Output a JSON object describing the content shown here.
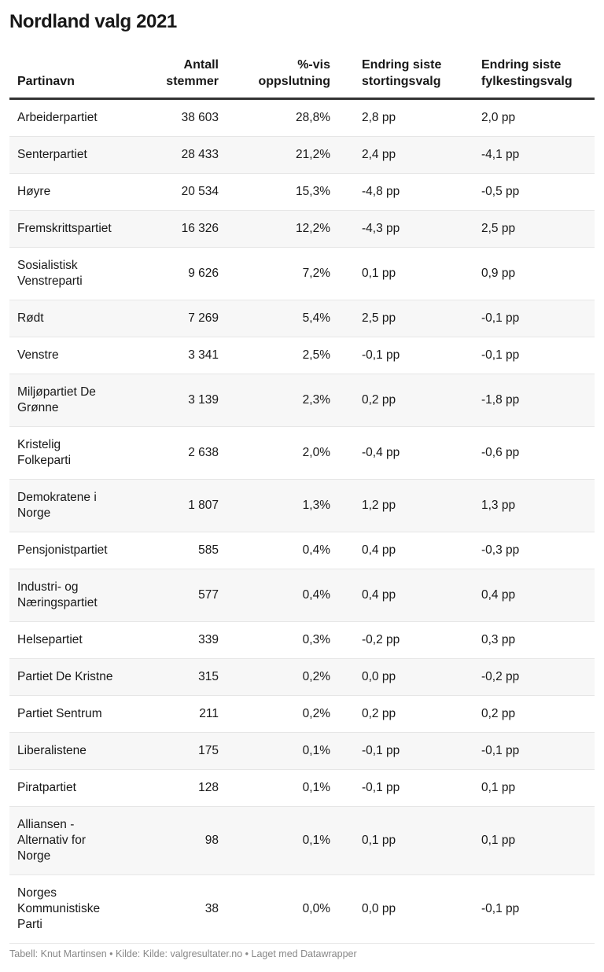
{
  "title": "Nordland valg 2021",
  "columns": [
    "Partinavn",
    "Antall\nstemmer",
    "%-vis\noppslutning",
    "Endring siste\nstortingsvalg",
    "Endring siste\nfylkestingsvalg"
  ],
  "rows": [
    [
      "Arbeiderpartiet",
      "38 603",
      "28,8%",
      "2,8 pp",
      "2,0 pp"
    ],
    [
      "Senterpartiet",
      "28 433",
      "21,2%",
      "2,4 pp",
      "-4,1 pp"
    ],
    [
      "Høyre",
      "20 534",
      "15,3%",
      "-4,8 pp",
      "-0,5 pp"
    ],
    [
      "Fremskrittspartiet",
      "16 326",
      "12,2%",
      "-4,3 pp",
      "2,5 pp"
    ],
    [
      "Sosialistisk\nVenstreparti",
      "9 626",
      "7,2%",
      "0,1 pp",
      "0,9 pp"
    ],
    [
      "Rødt",
      "7 269",
      "5,4%",
      "2,5 pp",
      "-0,1 pp"
    ],
    [
      "Venstre",
      "3 341",
      "2,5%",
      "-0,1 pp",
      "-0,1 pp"
    ],
    [
      "Miljøpartiet De\nGrønne",
      "3 139",
      "2,3%",
      "0,2 pp",
      "-1,8 pp"
    ],
    [
      "Kristelig\nFolkeparti",
      "2 638",
      "2,0%",
      "-0,4 pp",
      "-0,6 pp"
    ],
    [
      "Demokratene i\nNorge",
      "1 807",
      "1,3%",
      "1,2 pp",
      "1,3 pp"
    ],
    [
      "Pensjonistpartiet",
      "585",
      "0,4%",
      "0,4 pp",
      "-0,3 pp"
    ],
    [
      "Industri- og\nNæringspartiet",
      "577",
      "0,4%",
      "0,4 pp",
      "0,4 pp"
    ],
    [
      "Helsepartiet",
      "339",
      "0,3%",
      "-0,2 pp",
      "0,3 pp"
    ],
    [
      "Partiet De Kristne",
      "315",
      "0,2%",
      "0,0 pp",
      "-0,2 pp"
    ],
    [
      "Partiet Sentrum",
      "211",
      "0,2%",
      "0,2 pp",
      "0,2 pp"
    ],
    [
      "Liberalistene",
      "175",
      "0,1%",
      "-0,1 pp",
      "-0,1 pp"
    ],
    [
      "Piratpartiet",
      "128",
      "0,1%",
      "-0,1 pp",
      "0,1 pp"
    ],
    [
      "Alliansen -\nAlternativ for\nNorge",
      "98",
      "0,1%",
      "0,1 pp",
      "0,1 pp"
    ],
    [
      "Norges\nKommunistiske\nParti",
      "38",
      "0,0%",
      "0,0 pp",
      "-0,1 pp"
    ]
  ],
  "footer": "Tabell: Knut Martinsen • Kilde: Kilde: valgresultater.no • Laget med Datawrapper"
}
